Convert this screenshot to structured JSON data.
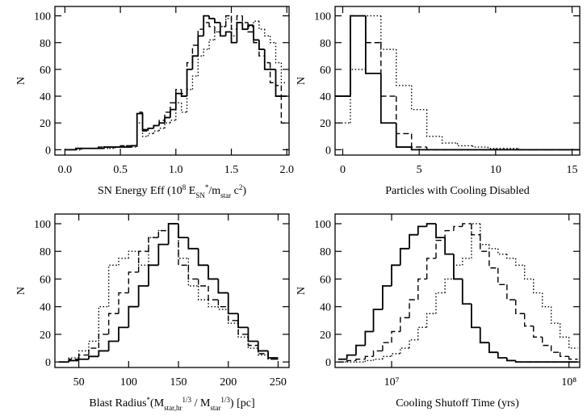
{
  "chart_data": [
    {
      "type": "histogram",
      "ylabel": "N",
      "xlabel": [
        {
          "text": "SN Energy Eff (10"
        },
        {
          "text": "8",
          "sup": true
        },
        {
          "text": " E"
        },
        {
          "text": "SN",
          "sub": true
        },
        {
          "text": "*",
          "sup": true
        },
        {
          "text": "/m"
        },
        {
          "text": "star",
          "sub": true
        },
        {
          "text": " c"
        },
        {
          "text": "2",
          "sup": true
        },
        {
          "text": ")"
        }
      ],
      "xlim": [
        -0.09,
        2.02
      ],
      "ylim": [
        -4,
        107
      ],
      "xticks": [
        {
          "value": 0,
          "label": "0.0"
        },
        {
          "value": 0.5,
          "label": "0.5"
        },
        {
          "value": 1,
          "label": "1.0"
        },
        {
          "value": 1.5,
          "label": "1.5"
        },
        {
          "value": 2,
          "label": "2.0"
        }
      ],
      "yticks": [
        0,
        20,
        40,
        60,
        80,
        100
      ],
      "bins": [
        0,
        0.05,
        0.1,
        0.15,
        0.2,
        0.25,
        0.3,
        0.35,
        0.4,
        0.45,
        0.5,
        0.55,
        0.6,
        0.65,
        0.7,
        0.75,
        0.8,
        0.85,
        0.9,
        0.95,
        1.0,
        1.05,
        1.1,
        1.15,
        1.2,
        1.25,
        1.3,
        1.35,
        1.4,
        1.45,
        1.5,
        1.55,
        1.6,
        1.65,
        1.7,
        1.75,
        1.8,
        1.85,
        1.9,
        1.95,
        2.0
      ],
      "series": [
        {
          "color": "#000000",
          "dash": "solid",
          "values": [
            0,
            0,
            1,
            1,
            1,
            1,
            1,
            2,
            2,
            2,
            2,
            2,
            3,
            27,
            15,
            16,
            18,
            20,
            24,
            30,
            42,
            40,
            60,
            70,
            85,
            100,
            98,
            95,
            85,
            88,
            80,
            95,
            90,
            93,
            82,
            75,
            60,
            60,
            40,
            40
          ]
        },
        {
          "color": "#000000",
          "dash": "dashed",
          "values": [
            0,
            0,
            1,
            1,
            1,
            1,
            2,
            2,
            2,
            2,
            3,
            3,
            3,
            28,
            14,
            16,
            18,
            22,
            28,
            35,
            45,
            42,
            65,
            78,
            90,
            95,
            92,
            88,
            92,
            100,
            90,
            100,
            95,
            88,
            80,
            70,
            65,
            50,
            48,
            20
          ]
        },
        {
          "color": "#000000",
          "dash": "dotted",
          "values": [
            0,
            0,
            0,
            1,
            1,
            1,
            1,
            1,
            1,
            2,
            2,
            2,
            2,
            20,
            10,
            12,
            14,
            16,
            20,
            22,
            35,
            28,
            45,
            55,
            70,
            75,
            82,
            88,
            92,
            98,
            85,
            95,
            90,
            92,
            96,
            90,
            85,
            80,
            65,
            50
          ]
        }
      ]
    },
    {
      "type": "histogram",
      "ylabel": "N",
      "xlabel": [
        {
          "text": "Particles with Cooling Disabled"
        }
      ],
      "xlim": [
        -0.5,
        15.5
      ],
      "ylim": [
        -4,
        107
      ],
      "xticks": [
        0,
        5,
        10,
        15
      ],
      "yticks": [
        0,
        20,
        40,
        60,
        80,
        100
      ],
      "bins": [
        -0.5,
        0.5,
        1.5,
        2.5,
        3.5,
        4.5,
        5.5,
        6.5,
        7.5,
        8.5,
        9.5,
        10.5,
        11.5,
        12.5,
        13.5,
        14.5,
        15.5
      ],
      "series": [
        {
          "color": "#000000",
          "dash": "solid",
          "values": [
            40,
            100,
            57,
            20,
            2,
            0,
            0,
            0,
            0,
            0,
            0,
            0,
            0,
            0,
            0,
            0
          ]
        },
        {
          "color": "#000000",
          "dash": "dashed",
          "values": [
            40,
            100,
            80,
            40,
            12,
            2,
            0,
            0,
            0,
            0,
            0,
            0,
            0,
            0,
            0,
            0
          ]
        },
        {
          "color": "#000000",
          "dash": "dotted",
          "values": [
            20,
            60,
            100,
            75,
            48,
            30,
            10,
            5,
            3,
            2,
            1,
            1,
            0,
            0,
            0,
            0
          ]
        }
      ]
    },
    {
      "type": "histogram",
      "ylabel": "N",
      "xlabel": [
        {
          "text": "Blast Radius"
        },
        {
          "text": "*",
          "sup": true
        },
        {
          "text": "(M"
        },
        {
          "text": "star,hr",
          "sub": true
        },
        {
          "text": "1/3",
          "sup": true
        },
        {
          "text": " / M"
        },
        {
          "text": "star",
          "sub": true
        },
        {
          "text": "1/3",
          "sup": true
        },
        {
          "text": ") [pc]"
        }
      ],
      "xlim": [
        26,
        261
      ],
      "ylim": [
        -4,
        107
      ],
      "xticks": [
        50,
        100,
        150,
        200,
        250
      ],
      "yticks": [
        0,
        20,
        40,
        60,
        80,
        100
      ],
      "bins": [
        30,
        40,
        50,
        60,
        70,
        80,
        90,
        100,
        110,
        120,
        130,
        140,
        150,
        160,
        170,
        180,
        190,
        200,
        210,
        220,
        230,
        240,
        250
      ],
      "series": [
        {
          "color": "#000000",
          "dash": "solid",
          "values": [
            0,
            1,
            2,
            4,
            8,
            15,
            25,
            40,
            55,
            70,
            85,
            100,
            90,
            82,
            70,
            60,
            50,
            35,
            25,
            15,
            8,
            3
          ]
        },
        {
          "color": "#000000",
          "dash": "dashed",
          "values": [
            0,
            2,
            5,
            10,
            20,
            35,
            50,
            65,
            80,
            90,
            95,
            100,
            70,
            60,
            55,
            45,
            40,
            30,
            20,
            12,
            6,
            2
          ]
        },
        {
          "color": "#000000",
          "dash": "dotted",
          "values": [
            0,
            3,
            8,
            15,
            40,
            70,
            75,
            80,
            70,
            90,
            95,
            100,
            75,
            55,
            45,
            40,
            38,
            28,
            18,
            10,
            5,
            2
          ]
        }
      ]
    },
    {
      "type": "histogram",
      "ylabel": "N",
      "xlabel": [
        {
          "text": "Cooling Shutoff Time (yrs)"
        }
      ],
      "log_x": true,
      "xlim": [
        4800000,
        115000000
      ],
      "ylim": [
        -4,
        107
      ],
      "xticks": [
        {
          "value": 10000000,
          "label": "10⁷"
        },
        {
          "value": 100000000,
          "label": "10⁸"
        }
      ],
      "yticks": [
        0,
        20,
        40,
        60,
        80,
        100
      ],
      "bins": [
        5000000,
        5600000,
        6300000,
        7100000,
        7900000,
        8900000,
        10000000,
        11200000,
        12600000,
        14100000,
        15800000,
        17800000,
        20000000,
        22400000,
        25100000,
        28200000,
        31600000,
        35500000,
        39800000,
        44700000,
        50100000,
        56200000,
        63100000,
        70800000,
        79400000,
        89100000,
        100000000,
        112000000
      ],
      "series": [
        {
          "color": "#000000",
          "dash": "solid",
          "values": [
            2,
            5,
            12,
            22,
            38,
            55,
            70,
            82,
            92,
            98,
            100,
            90,
            78,
            60,
            42,
            25,
            14,
            7,
            3,
            1,
            0,
            0,
            0,
            0,
            0,
            0,
            0
          ]
        },
        {
          "color": "#000000",
          "dash": "dashed",
          "values": [
            0,
            1,
            2,
            4,
            8,
            14,
            22,
            32,
            45,
            60,
            75,
            88,
            95,
            98,
            100,
            92,
            80,
            68,
            56,
            45,
            35,
            26,
            18,
            12,
            7,
            4,
            2
          ]
        },
        {
          "color": "#000000",
          "dash": "dotted",
          "values": [
            0,
            0,
            0,
            1,
            2,
            4,
            6,
            10,
            16,
            25,
            35,
            50,
            60,
            70,
            75,
            100,
            85,
            82,
            78,
            75,
            70,
            60,
            50,
            40,
            28,
            18,
            10
          ]
        }
      ]
    }
  ]
}
